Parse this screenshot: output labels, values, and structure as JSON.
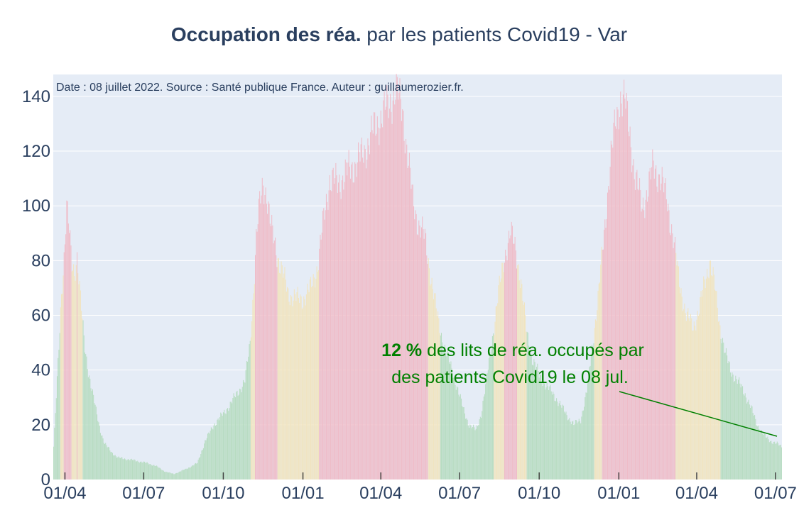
{
  "title": {
    "bold": "Occupation des réa.",
    "rest": " par les patients Covid19 - Var"
  },
  "source_note": "Date : 08 juillet 2022. Source : Santé publique France. Auteur : guillaumerozier.fr.",
  "annotation": {
    "value": "12 %",
    "line1_rest": " des lits de réa. occupés par",
    "line2": "des patients Covid19 le 08 jul."
  },
  "colors": {
    "plot_bg": "#e5ecf6",
    "grid": "#ffffff",
    "axis_text": "#2a3f5f",
    "green": "#b7dcc1",
    "yellow": "#f1e4bf",
    "red": "#efbcc8",
    "annotation": "#008000"
  },
  "chart_data": {
    "type": "bar",
    "x_start": "2020-03-19",
    "x_end": "2022-07-08",
    "x_tick_labels": [
      "01/04",
      "01/07",
      "01/10",
      "01/01",
      "01/04",
      "01/07",
      "01/10",
      "01/01",
      "01/04",
      "01/07"
    ],
    "x_tick_dates": [
      "2020-04-01",
      "2020-07-01",
      "2020-10-01",
      "2021-01-01",
      "2021-04-01",
      "2021-07-01",
      "2021-10-01",
      "2022-01-01",
      "2022-04-01",
      "2022-07-01"
    ],
    "y_ticks": [
      0,
      20,
      40,
      60,
      80,
      100,
      120,
      140
    ],
    "ylim": [
      0,
      148
    ],
    "grid": true,
    "color_rule": "green below 40% bed occupancy, yellow 40-60%, red above 60%",
    "series": [
      {
        "values": [
          [
            [
              "2020-03-19",
              12
            ],
            [
              "2020-03-22",
              30
            ],
            [
              "2020-03-25",
              48
            ],
            [
              "2020-03-28",
              68
            ],
            [
              "2020-03-31",
              82
            ],
            [
              "2020-04-03",
              100
            ],
            [
              "2020-04-06",
              90
            ],
            [
              "2020-04-09",
              78
            ],
            [
              "2020-04-12",
              76
            ],
            [
              "2020-04-15",
              82
            ],
            [
              "2020-04-18",
              70
            ],
            [
              "2020-04-21",
              58
            ],
            [
              "2020-04-24",
              48
            ],
            [
              "2020-04-28",
              40
            ],
            [
              "2020-05-02",
              33
            ],
            [
              "2020-05-07",
              25
            ],
            [
              "2020-05-12",
              18
            ],
            [
              "2020-05-17",
              13
            ],
            [
              "2020-05-25",
              10
            ],
            [
              "2020-06-01",
              8
            ],
            [
              "2020-06-20",
              7
            ],
            [
              "2020-07-05",
              6
            ],
            [
              "2020-07-15",
              5
            ],
            [
              "2020-07-25",
              3
            ],
            [
              "2020-08-05",
              2
            ],
            [
              "2020-08-20",
              4
            ],
            [
              "2020-09-01",
              6
            ],
            [
              "2020-09-10",
              14
            ],
            [
              "2020-09-20",
              20
            ],
            [
              "2020-10-01",
              24
            ],
            [
              "2020-10-10",
              28
            ],
            [
              "2020-10-18",
              32
            ],
            [
              "2020-10-26",
              36
            ],
            [
              "2020-11-01",
              50
            ],
            [
              "2020-11-05",
              70
            ],
            [
              "2020-11-08",
              88
            ],
            [
              "2020-11-12",
              100
            ],
            [
              "2020-11-16",
              108
            ],
            [
              "2020-11-20",
              105
            ],
            [
              "2020-11-25",
              92
            ],
            [
              "2020-12-01",
              84
            ],
            [
              "2020-12-08",
              76
            ],
            [
              "2020-12-15",
              68
            ],
            [
              "2020-12-25",
              66
            ],
            [
              "2021-01-01",
              66
            ],
            [
              "2021-01-10",
              70
            ],
            [
              "2021-01-18",
              78
            ],
            [
              "2021-01-25",
              95
            ],
            [
              "2021-02-01",
              110
            ],
            [
              "2021-02-10",
              108
            ],
            [
              "2021-02-20",
              112
            ],
            [
              "2021-03-01",
              115
            ],
            [
              "2021-03-10",
              118
            ],
            [
              "2021-03-20",
              125
            ],
            [
              "2021-03-31",
              132
            ],
            [
              "2021-04-10",
              137
            ],
            [
              "2021-04-18",
              142
            ],
            [
              "2021-04-26",
              136
            ],
            [
              "2021-05-02",
              118
            ],
            [
              "2021-05-08",
              102
            ],
            [
              "2021-05-14",
              94
            ],
            [
              "2021-05-22",
              88
            ],
            [
              "2021-05-30",
              72
            ],
            [
              "2021-06-05",
              60
            ],
            [
              "2021-06-12",
              50
            ],
            [
              "2021-06-20",
              42
            ],
            [
              "2021-06-28",
              34
            ],
            [
              "2021-07-05",
              26
            ],
            [
              "2021-07-12",
              20
            ],
            [
              "2021-07-20",
              18
            ],
            [
              "2021-07-26",
              24
            ],
            [
              "2021-08-01",
              36
            ],
            [
              "2021-08-08",
              52
            ],
            [
              "2021-08-15",
              68
            ],
            [
              "2021-08-22",
              82
            ],
            [
              "2021-08-29",
              90
            ],
            [
              "2021-09-04",
              84
            ],
            [
              "2021-09-10",
              72
            ],
            [
              "2021-09-16",
              55
            ],
            [
              "2021-09-22",
              45
            ],
            [
              "2021-10-01",
              38
            ],
            [
              "2021-10-10",
              34
            ],
            [
              "2021-10-20",
              30
            ],
            [
              "2021-11-01",
              24
            ],
            [
              "2021-11-10",
              20
            ],
            [
              "2021-11-18",
              22
            ],
            [
              "2021-11-25",
              32
            ],
            [
              "2021-12-01",
              48
            ],
            [
              "2021-12-08",
              66
            ],
            [
              "2021-12-15",
              90
            ],
            [
              "2021-12-22",
              115
            ],
            [
              "2021-12-28",
              130
            ],
            [
              "2022-01-03",
              140
            ],
            [
              "2022-01-08",
              138
            ],
            [
              "2022-01-14",
              126
            ],
            [
              "2022-01-20",
              110
            ],
            [
              "2022-01-28",
              100
            ],
            [
              "2022-02-04",
              106
            ],
            [
              "2022-02-10",
              115
            ],
            [
              "2022-02-18",
              110
            ],
            [
              "2022-02-26",
              102
            ],
            [
              "2022-03-05",
              88
            ],
            [
              "2022-03-12",
              72
            ],
            [
              "2022-03-20",
              60
            ],
            [
              "2022-03-28",
              56
            ],
            [
              "2022-04-04",
              62
            ],
            [
              "2022-04-10",
              72
            ],
            [
              "2022-04-16",
              80
            ],
            [
              "2022-04-22",
              70
            ],
            [
              "2022-04-28",
              56
            ],
            [
              "2022-05-04",
              46
            ],
            [
              "2022-05-10",
              40
            ],
            [
              "2022-05-18",
              36
            ],
            [
              "2022-05-26",
              32
            ],
            [
              "2022-06-03",
              26
            ],
            [
              "2022-06-10",
              20
            ],
            [
              "2022-06-18",
              16
            ],
            [
              "2022-06-26",
              14
            ],
            [
              "2022-07-03",
              13
            ],
            [
              "2022-07-08",
              12
            ]
          ]
        ]
      }
    ]
  }
}
